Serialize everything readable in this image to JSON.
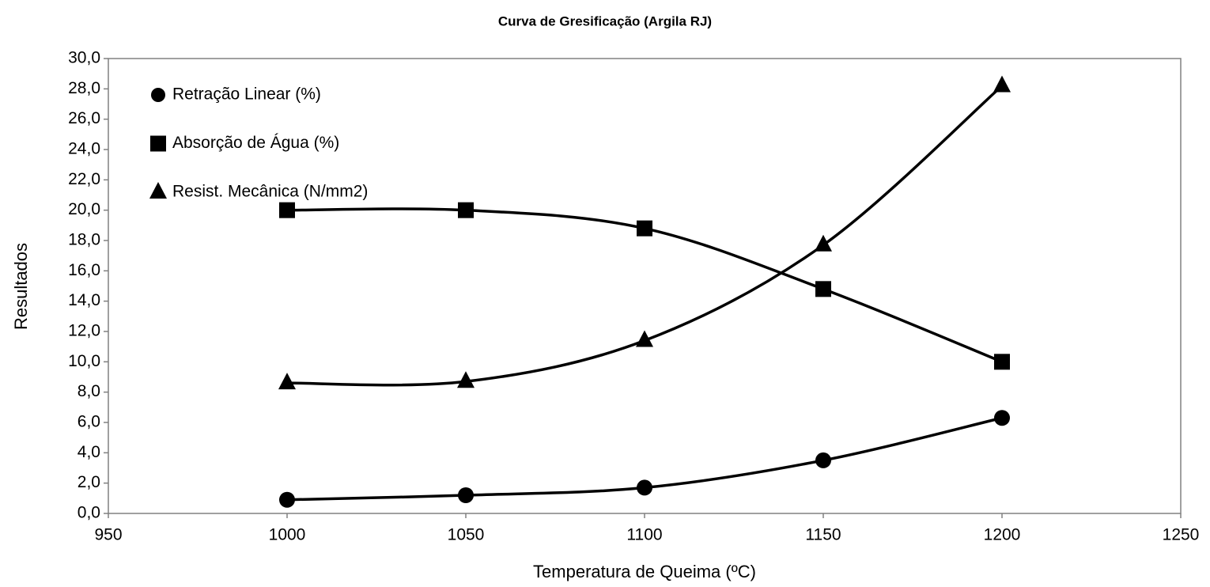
{
  "chart_data": {
    "type": "line",
    "title": "Curva de Gresificação (Argila RJ)",
    "x_label": "Temperatura de Queima (ºC)",
    "y_label": "Resultados",
    "x": [
      1000,
      1050,
      1100,
      1150,
      1200
    ],
    "series": [
      {
        "name": "Retração Linear (%)",
        "color": "#000000",
        "marker": "circle",
        "values": [
          0.9,
          1.2,
          1.7,
          3.5,
          6.3
        ]
      },
      {
        "name": "Absorção de Água (%)",
        "color": "#000000",
        "marker": "square",
        "values": [
          20.0,
          20.0,
          18.8,
          14.8,
          10.0
        ]
      },
      {
        "name": "Resist. Mecânica (N/mm2)",
        "color": "#000000",
        "marker": "triangle",
        "values": [
          8.6,
          8.7,
          11.4,
          17.7,
          28.2
        ]
      }
    ],
    "xlim": [
      950,
      1250
    ],
    "xticks": [
      950,
      1000,
      1050,
      1100,
      1150,
      1200,
      1250
    ],
    "ylim": [
      0,
      30
    ],
    "yticks": [
      {
        "value": 0,
        "label": "0,0"
      },
      {
        "value": 2,
        "label": "2,0"
      },
      {
        "value": 4,
        "label": "4,0"
      },
      {
        "value": 6,
        "label": "6,0"
      },
      {
        "value": 8,
        "label": "8,0"
      },
      {
        "value": 10,
        "label": "10,0"
      },
      {
        "value": 12,
        "label": "12,0"
      },
      {
        "value": 14,
        "label": "14,0"
      },
      {
        "value": 16,
        "label": "16,0"
      },
      {
        "value": 18,
        "label": "18,0"
      },
      {
        "value": 20,
        "label": "20,0"
      },
      {
        "value": 22,
        "label": "22,0"
      },
      {
        "value": 24,
        "label": "24,0"
      },
      {
        "value": 26,
        "label": "26,0"
      },
      {
        "value": 28,
        "label": "28,0"
      },
      {
        "value": 30,
        "label": "30,0"
      }
    ]
  }
}
